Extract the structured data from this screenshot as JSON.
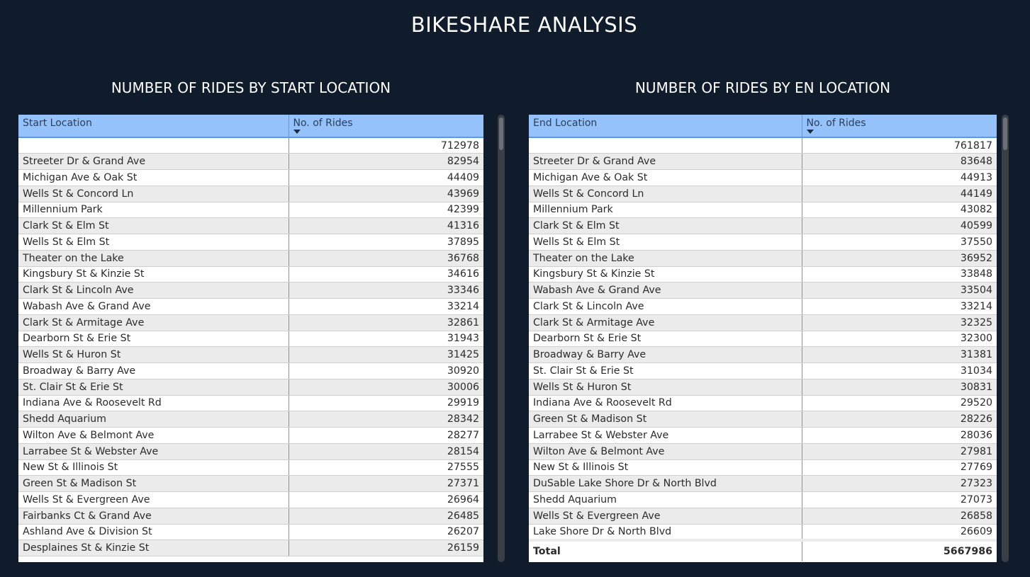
{
  "title": "BIKESHARE ANALYSIS",
  "start_panel": {
    "title": "NUMBER OF RIDES BY START LOCATION",
    "col_location": "Start Location",
    "col_rides": "No. of Rides",
    "rows": [
      {
        "loc": "",
        "n": "712978"
      },
      {
        "loc": "Streeter Dr & Grand Ave",
        "n": "82954"
      },
      {
        "loc": "Michigan Ave & Oak St",
        "n": "44409"
      },
      {
        "loc": "Wells St & Concord Ln",
        "n": "43969"
      },
      {
        "loc": "Millennium Park",
        "n": "42399"
      },
      {
        "loc": "Clark St & Elm St",
        "n": "41316"
      },
      {
        "loc": "Wells St & Elm St",
        "n": "37895"
      },
      {
        "loc": "Theater on the Lake",
        "n": "36768"
      },
      {
        "loc": "Kingsbury St & Kinzie St",
        "n": "34616"
      },
      {
        "loc": "Clark St & Lincoln Ave",
        "n": "33346"
      },
      {
        "loc": "Wabash Ave & Grand Ave",
        "n": "33214"
      },
      {
        "loc": "Clark St & Armitage Ave",
        "n": "32861"
      },
      {
        "loc": "Dearborn St & Erie St",
        "n": "31943"
      },
      {
        "loc": "Wells St & Huron St",
        "n": "31425"
      },
      {
        "loc": "Broadway & Barry Ave",
        "n": "30920"
      },
      {
        "loc": "St. Clair St & Erie St",
        "n": "30006"
      },
      {
        "loc": "Indiana Ave & Roosevelt Rd",
        "n": "29919"
      },
      {
        "loc": "Shedd Aquarium",
        "n": "28342"
      },
      {
        "loc": "Wilton Ave & Belmont Ave",
        "n": "28277"
      },
      {
        "loc": "Larrabee St & Webster Ave",
        "n": "28154"
      },
      {
        "loc": "New St & Illinois St",
        "n": "27555"
      },
      {
        "loc": "Green St & Madison St",
        "n": "27371"
      },
      {
        "loc": "Wells St & Evergreen Ave",
        "n": "26964"
      },
      {
        "loc": "Fairbanks Ct & Grand Ave",
        "n": "26485"
      },
      {
        "loc": "Ashland Ave & Division St",
        "n": "26207"
      },
      {
        "loc": "Desplaines St & Kinzie St",
        "n": "26159"
      }
    ]
  },
  "end_panel": {
    "title": "NUMBER OF RIDES BY EN LOCATION",
    "col_location": "End Location",
    "col_rides": "No. of Rides",
    "rows": [
      {
        "loc": "",
        "n": "761817"
      },
      {
        "loc": "Streeter Dr & Grand Ave",
        "n": "83648"
      },
      {
        "loc": "Michigan Ave & Oak St",
        "n": "44913"
      },
      {
        "loc": "Wells St & Concord Ln",
        "n": "44149"
      },
      {
        "loc": "Millennium Park",
        "n": "43082"
      },
      {
        "loc": "Clark St & Elm St",
        "n": "40599"
      },
      {
        "loc": "Wells St & Elm St",
        "n": "37550"
      },
      {
        "loc": "Theater on the Lake",
        "n": "36952"
      },
      {
        "loc": "Kingsbury St & Kinzie St",
        "n": "33848"
      },
      {
        "loc": "Wabash Ave & Grand Ave",
        "n": "33504"
      },
      {
        "loc": "Clark St & Lincoln Ave",
        "n": "33214"
      },
      {
        "loc": "Clark St & Armitage Ave",
        "n": "32325"
      },
      {
        "loc": "Dearborn St & Erie St",
        "n": "32300"
      },
      {
        "loc": "Broadway & Barry Ave",
        "n": "31381"
      },
      {
        "loc": "St. Clair St & Erie St",
        "n": "31034"
      },
      {
        "loc": "Wells St & Huron St",
        "n": "30831"
      },
      {
        "loc": "Indiana Ave & Roosevelt Rd",
        "n": "29520"
      },
      {
        "loc": "Green St & Madison St",
        "n": "28226"
      },
      {
        "loc": "Larrabee St & Webster Ave",
        "n": "28036"
      },
      {
        "loc": "Wilton Ave & Belmont Ave",
        "n": "27981"
      },
      {
        "loc": "New St & Illinois St",
        "n": "27769"
      },
      {
        "loc": "DuSable Lake Shore Dr & North Blvd",
        "n": "27323"
      },
      {
        "loc": "Shedd Aquarium",
        "n": "27073"
      },
      {
        "loc": "Wells St & Evergreen Ave",
        "n": "26858"
      },
      {
        "loc": "Lake Shore Dr & North Blvd",
        "n": "26609"
      }
    ],
    "total_label": "Total",
    "total_value": "5667986"
  }
}
